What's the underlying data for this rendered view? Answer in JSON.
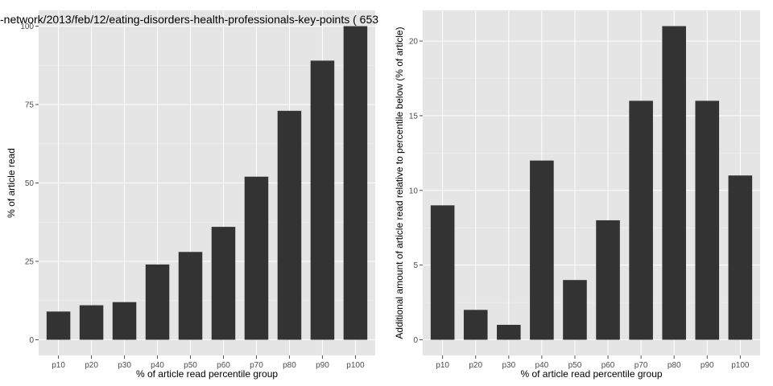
{
  "page": {
    "title": "-network/2013/feb/12/eating-disorders-health-professionals-key-points ( 653"
  },
  "style": {
    "panel_bg": "#e5e5e5",
    "grid_major": "#ffffff",
    "grid_minor": "#f2f2f2",
    "bar_fill": "#333333",
    "tick_color": "#4d4d4d"
  },
  "chart_data": [
    {
      "type": "bar",
      "xlabel": "% of article read percentile group",
      "ylabel": "% of article read",
      "categories": [
        "p10",
        "p20",
        "p30",
        "p40",
        "p50",
        "p60",
        "p70",
        "p80",
        "p90",
        "p100"
      ],
      "values": [
        9,
        11,
        12,
        24,
        28,
        36,
        52,
        73,
        89,
        100
      ],
      "ylim": [
        -5,
        105
      ],
      "yticks": [
        0,
        25,
        50,
        75,
        100
      ],
      "grid": true
    },
    {
      "type": "bar",
      "xlabel": "% of article read percentile group",
      "ylabel": "Additional amount of article read relative to percentile below (% of article)",
      "categories": [
        "p10",
        "p20",
        "p30",
        "p40",
        "p50",
        "p60",
        "p70",
        "p80",
        "p90",
        "p100"
      ],
      "values": [
        9,
        2,
        1,
        12,
        4,
        8,
        16,
        21,
        16,
        11
      ],
      "ylim": [
        -1.05,
        22.05
      ],
      "yticks": [
        0,
        5,
        10,
        15,
        20
      ],
      "grid": true
    }
  ]
}
